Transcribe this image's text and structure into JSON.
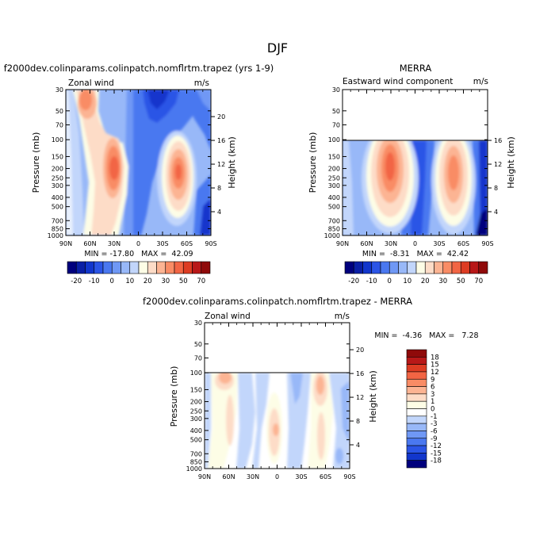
{
  "figure": {
    "season": "DJF",
    "title_model": "f2000dev.colinparams.colinpatch.nomflrtm.trapez (yrs 1-9)",
    "title_obs": "MERRA",
    "title_diff": "f2000dev.colinparams.colinpatch.nomflrtm.trapez - MERRA"
  },
  "chart_data": [
    {
      "type": "contour",
      "name": "model",
      "field_label": "Zonal wind",
      "units": "m/s",
      "xlabel": "",
      "ylabel": "Pressure (mb)",
      "y2label": "Height (km)",
      "xticks": [
        "90N",
        "60N",
        "30N",
        "0",
        "30S",
        "60S",
        "90S"
      ],
      "yticks": [
        "30",
        "50",
        "70",
        "100",
        "150",
        "200",
        "250",
        "300",
        "400",
        "500",
        "700",
        "850",
        "1000"
      ],
      "y2ticks": [
        "4",
        "8",
        "12",
        "16",
        "20"
      ],
      "stats": "MIN = -17.80   MAX =  42.09",
      "data_top_mb": 30
    },
    {
      "type": "contour",
      "name": "obs",
      "field_label": "Eastward wind component",
      "units": "m/s",
      "xlabel": "",
      "ylabel": "Pressure (mb)",
      "y2label": "Height (km)",
      "xticks": [
        "90N",
        "60N",
        "30N",
        "0",
        "30S",
        "60S",
        "90S"
      ],
      "yticks": [
        "30",
        "50",
        "70",
        "100",
        "150",
        "200",
        "250",
        "300",
        "400",
        "500",
        "700",
        "850",
        "1000"
      ],
      "y2ticks": [
        "4",
        "8",
        "12",
        "16"
      ],
      "stats": "MIN =  -8.31   MAX =  42.42",
      "data_top_mb": 100
    },
    {
      "type": "contour",
      "name": "difference",
      "field_label": "Zonal wind",
      "units": "m/s",
      "xlabel": "",
      "ylabel": "Pressure (mb)",
      "y2label": "Height (km)",
      "xticks": [
        "90N",
        "60N",
        "30N",
        "0",
        "30S",
        "60S",
        "90S"
      ],
      "yticks": [
        "30",
        "50",
        "70",
        "100",
        "150",
        "200",
        "250",
        "300",
        "400",
        "500",
        "700",
        "850",
        "1000"
      ],
      "y2ticks": [
        "4",
        "8",
        "12",
        "16",
        "20"
      ],
      "stats": "MIN =  -4.36   MAX =   7.28",
      "data_top_mb": 100
    }
  ],
  "colorbar_main": {
    "labels": [
      "-20",
      "-10",
      "0",
      "10",
      "20",
      "30",
      "50",
      "70"
    ],
    "colors": [
      "#00007d",
      "#0a1fa5",
      "#1236cc",
      "#2b55e6",
      "#4a78f0",
      "#6f98f5",
      "#98b8f8",
      "#c2d6fb",
      "#fdfde6",
      "#fddcc7",
      "#fcb493",
      "#f98c65",
      "#f26544",
      "#dd3c23",
      "#b81818",
      "#8f0a0a"
    ]
  },
  "colorbar_diff": {
    "labels": [
      "18",
      "15",
      "12",
      "9",
      "6",
      "3",
      "1",
      "0",
      "-1",
      "-3",
      "-6",
      "-9",
      "-12",
      "-15",
      "-18"
    ],
    "colors": [
      "#8f0a0a",
      "#b81818",
      "#dd3c23",
      "#f26544",
      "#f98c65",
      "#fcb493",
      "#fddcc7",
      "#fdfde6",
      "#ffffff",
      "#c2d6fb",
      "#98b8f8",
      "#6f98f5",
      "#4a78f0",
      "#2b55e6",
      "#1236cc",
      "#00007d"
    ]
  }
}
